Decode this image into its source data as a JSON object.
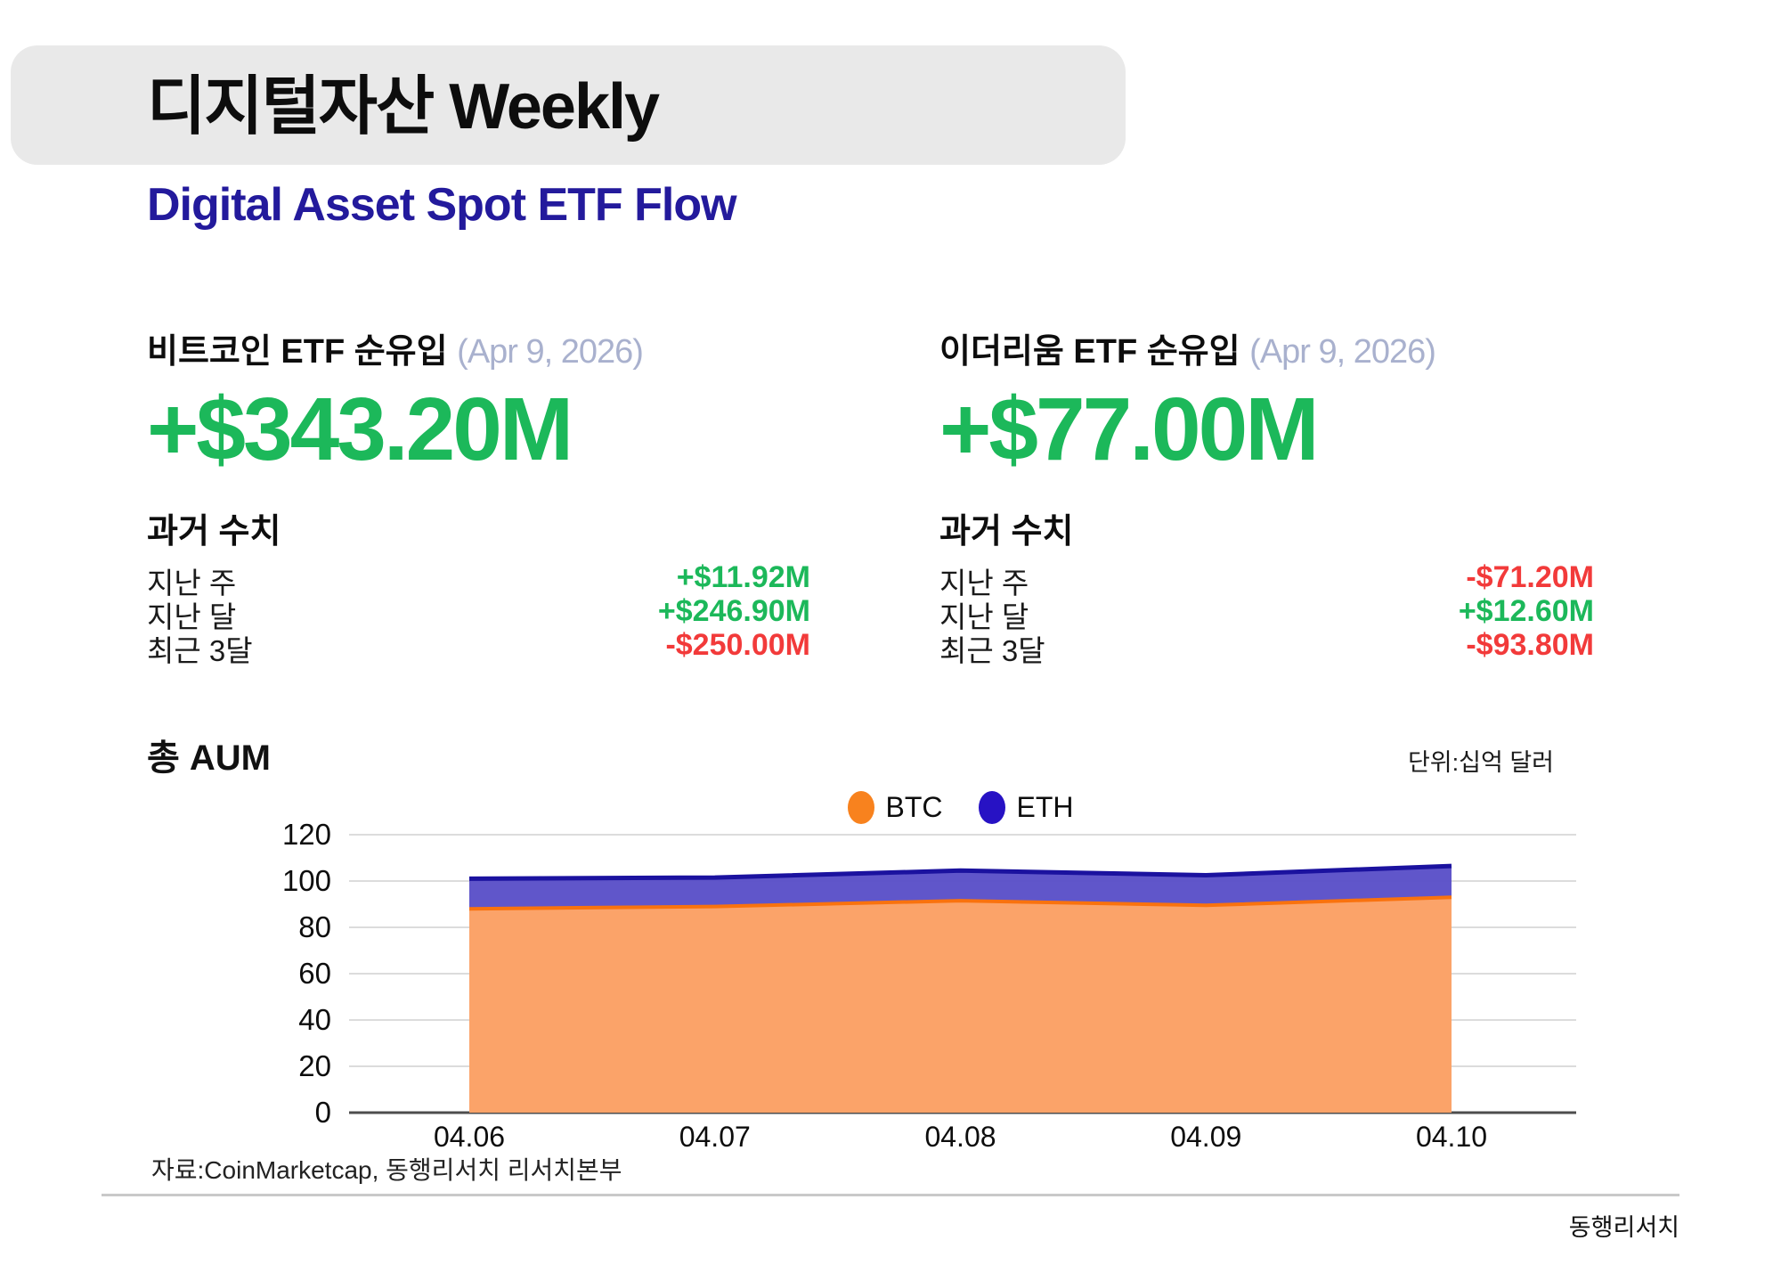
{
  "header": {
    "badge_title": "디지털자산 Weekly",
    "subtitle": "Digital Asset Spot ETF Flow",
    "subtitle_color": "#231a9c",
    "badge_bg": "#e9e9e9"
  },
  "colors": {
    "positive": "#1cb85a",
    "negative": "#f23a3a",
    "date_gray": "#a9b1ce"
  },
  "stats": {
    "btc": {
      "label": "비트코인 ETF 순유입",
      "date": "(Apr 9, 2026)",
      "value": "+$343.20M",
      "value_color": "#1cb85a",
      "history_title": "과거 수치",
      "history": [
        {
          "label": "지난 주",
          "value": "+$11.92M",
          "color": "#1cb85a"
        },
        {
          "label": "지난 달",
          "value": "+$246.90M",
          "color": "#1cb85a"
        },
        {
          "label": "최근 3달",
          "value": "-$250.00M",
          "color": "#f23a3a"
        }
      ]
    },
    "eth": {
      "label": "이더리움 ETF 순유입",
      "date": "(Apr 9, 2026)",
      "value": "+$77.00M",
      "value_color": "#1cb85a",
      "history_title": "과거 수치",
      "history": [
        {
          "label": "지난 주",
          "value": "-$71.20M",
          "color": "#f23a3a"
        },
        {
          "label": "지난 달",
          "value": "+$12.60M",
          "color": "#1cb85a"
        },
        {
          "label": "최근 3달",
          "value": "-$93.80M",
          "color": "#f23a3a"
        }
      ]
    }
  },
  "chart": {
    "title": "총 AUM",
    "unit_label": "단위:십억 달러",
    "legend": [
      {
        "label": "BTC",
        "dot_color": "#f8821e"
      },
      {
        "label": "ETH",
        "dot_color": "#2712c4"
      }
    ]
  },
  "chart_data": {
    "type": "area",
    "stacked": true,
    "title": "총 AUM",
    "unit": "십억 달러 (billion USD)",
    "x": [
      "04.06",
      "04.07",
      "04.08",
      "04.09",
      "04.10"
    ],
    "series": [
      {
        "name": "BTC",
        "values": [
          88,
          89,
          91.5,
          89.5,
          93
        ],
        "fill": "#fba369",
        "line": "#f9720e"
      },
      {
        "name": "ETH",
        "values": [
          13,
          12.5,
          13,
          13,
          13.5
        ],
        "fill": "#5b51c8",
        "line": "#1b129f"
      }
    ],
    "totals": [
      101,
      101.5,
      104.5,
      102.5,
      106.5
    ],
    "ylim": [
      0,
      120
    ],
    "ytick": 20,
    "grid": true,
    "grid_color": "#dcdcdc",
    "axis_color": "#4d4d4d",
    "legend_position": "top-center"
  },
  "footer": {
    "source": "자료:CoinMarketcap, 동행리서치 리서치본부",
    "brand": "동행리서치"
  }
}
